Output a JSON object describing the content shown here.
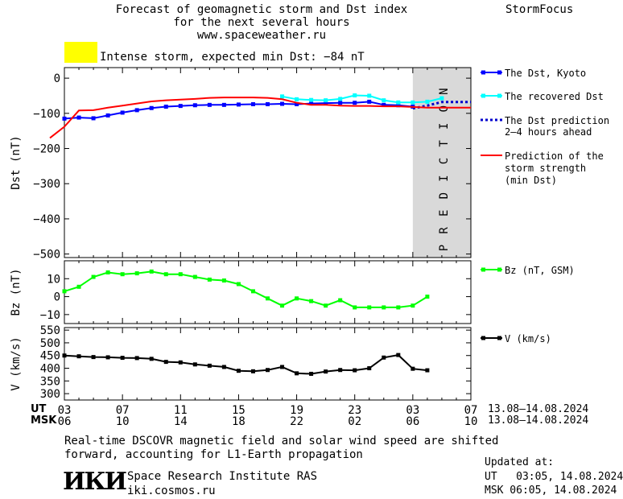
{
  "header": {
    "title_line1": "Forecast of geomagnetic storm and Dst index",
    "title_line2": "for the next several hours",
    "url": "www.spaceweather.ru",
    "brand": "StormFocus"
  },
  "status": {
    "color": "#ffff00",
    "text": "Intense storm, expected min Dst: −84 nT"
  },
  "legend": {
    "dst_kyoto": "The Dst, Kyoto",
    "recovered": "The recovered Dst",
    "prediction_line1": "The Dst prediction",
    "prediction_line2": "2–4 hours ahead",
    "strength_line1": "Prediction of the",
    "strength_line2": "storm strength",
    "strength_line3": "(min Dst)",
    "bz": "Bz (nT, GSM)",
    "v": "V (km/s)"
  },
  "prediction_band_label": "PREDICTION",
  "time_axis": {
    "ut_label": "UT",
    "msk_label": "MSK",
    "ut_ticks": [
      "03",
      "07",
      "11",
      "15",
      "19",
      "23",
      "03",
      "07"
    ],
    "msk_ticks": [
      "06",
      "10",
      "14",
      "18",
      "22",
      "02",
      "06",
      "10"
    ],
    "ut_range": "13.08–14.08.2024",
    "msk_range": "13.08–14.08.2024"
  },
  "footer": {
    "note_line1": "Real-time DSCOVR magnetic field and solar wind speed are shifted",
    "note_line2": "forward, accounting for L1-Earth propagation",
    "logo_text": "ИКИ",
    "institute": "Space Research Institute RAS",
    "site": "iki.cosmos.ru",
    "updated_label": "Updated at:",
    "updated_ut": "UT   03:05, 14.08.2024",
    "updated_msk": "MSK 06:05, 14.08.2024"
  },
  "colors": {
    "dst_kyoto": "#0000ff",
    "recovered": "#00ffff",
    "prediction": "#0000cc",
    "strength": "#ff0000",
    "bz": "#00ff00",
    "v": "#000000",
    "prediction_band": "#d9d9d9"
  },
  "chart_data": [
    {
      "type": "line",
      "panel": "dst",
      "x_unit": "hours since 03 UT 13.08",
      "x_range": [
        0,
        28
      ],
      "ylabel": "Dst (nT)",
      "ylim": [
        -510,
        30
      ],
      "yticks": [
        0,
        -100,
        -200,
        -300,
        -400,
        -500
      ],
      "prediction_band_x": [
        24,
        28
      ],
      "series": [
        {
          "name": "The Dst, Kyoto",
          "x": [
            0,
            1,
            2,
            3,
            4,
            5,
            6,
            7,
            8,
            9,
            10,
            11,
            12,
            13,
            14,
            15,
            16,
            17,
            18,
            19,
            20,
            21,
            22,
            23,
            24
          ],
          "values": [
            -115,
            -112,
            -114,
            -106,
            -98,
            -91,
            -85,
            -81,
            -79,
            -77,
            -76,
            -76,
            -75,
            -74,
            -74,
            -73,
            -74,
            -72,
            -71,
            -70,
            -70,
            -67,
            -76,
            -77,
            -81
          ]
        },
        {
          "name": "The recovered Dst",
          "x": [
            15,
            16,
            17,
            18,
            19,
            20,
            21,
            22,
            23,
            24,
            25,
            26
          ],
          "values": [
            -52,
            -60,
            -62,
            -63,
            -59,
            -49,
            -50,
            -63,
            -69,
            -69,
            -67,
            -57
          ]
        },
        {
          "name": "The Dst prediction 2–4 hours ahead",
          "x": [
            24,
            25,
            26,
            27,
            28
          ],
          "values": [
            -86,
            -78,
            -68,
            -68,
            -68
          ]
        },
        {
          "name": "Prediction of the storm strength (min Dst)",
          "x": [
            -1,
            0,
            1,
            2,
            3,
            4,
            5,
            6,
            7,
            8,
            9,
            10,
            11,
            12,
            13,
            14,
            15,
            16,
            17,
            18,
            19,
            20,
            21,
            22,
            23,
            24,
            25,
            26,
            27,
            28
          ],
          "values": [
            -170,
            -138,
            -92,
            -91,
            -84,
            -78,
            -72,
            -66,
            -63,
            -61,
            -59,
            -56,
            -55,
            -55,
            -55,
            -56,
            -60,
            -70,
            -76,
            -76,
            -78,
            -79,
            -79,
            -80,
            -80,
            -82,
            -84,
            -84,
            -84,
            -84
          ]
        }
      ]
    },
    {
      "type": "line",
      "panel": "bz",
      "x_unit": "hours since 03 UT 13.08",
      "x_range": [
        0,
        28
      ],
      "ylabel": "Bz (nT)",
      "ylim": [
        -15,
        20
      ],
      "yticks": [
        10,
        0,
        -10
      ],
      "series": [
        {
          "name": "Bz (nT, GSM)",
          "x": [
            0,
            1,
            2,
            3,
            4,
            5,
            6,
            7,
            8,
            9,
            10,
            11,
            12,
            13,
            14,
            15,
            16,
            17,
            18,
            19,
            20,
            21,
            22,
            23,
            24,
            25
          ],
          "values": [
            3,
            5.5,
            11,
            13.5,
            12.5,
            13,
            14,
            12.5,
            12.5,
            11,
            9.5,
            9,
            7,
            3,
            -1,
            -5,
            -1,
            -2.5,
            -5,
            -2,
            -6,
            -6,
            -6,
            -6,
            -5,
            0
          ]
        }
      ]
    },
    {
      "type": "line",
      "panel": "v",
      "x_unit": "hours since 03 UT 13.08",
      "x_range": [
        0,
        28
      ],
      "ylabel": "V (km/s)",
      "ylim": [
        275,
        560
      ],
      "yticks": [
        550,
        500,
        450,
        400,
        350,
        300
      ],
      "series": [
        {
          "name": "V (km/s)",
          "x": [
            0,
            1,
            2,
            3,
            4,
            5,
            6,
            7,
            8,
            9,
            10,
            11,
            12,
            13,
            14,
            15,
            16,
            17,
            18,
            19,
            20,
            21,
            22,
            23,
            24,
            25
          ],
          "values": [
            450,
            447,
            444,
            443,
            441,
            440,
            437,
            425,
            423,
            415,
            410,
            405,
            390,
            388,
            393,
            405,
            380,
            378,
            387,
            393,
            392,
            400,
            442,
            452,
            398,
            392
          ]
        }
      ]
    }
  ]
}
